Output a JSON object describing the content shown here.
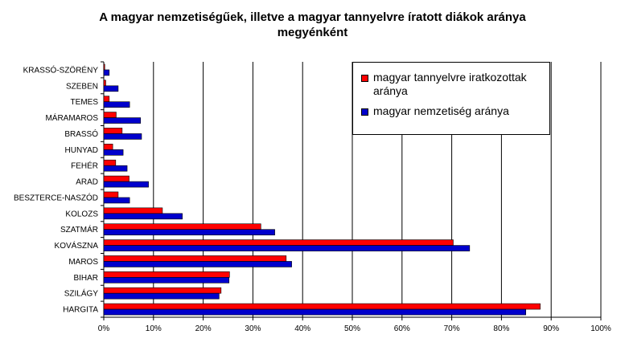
{
  "chart_data": {
    "type": "bar",
    "orientation": "horizontal",
    "title_line1": "A magyar nemzetiségűek, illetve  a magyar tannyelvre íratott  diákok aránya",
    "title_line2": "megyénként",
    "categories": [
      "KRASSÓ-SZÖRÉNY",
      "SZEBEN",
      "TEMES",
      "MÁRAMAROS",
      "BRASSÓ",
      "HUNYAD",
      "FEHÉR",
      "ARAD",
      "BESZTERCE-NASZÓD",
      "KOLOZS",
      "SZATMÁR",
      "KOVÁSZNA",
      "MAROS",
      "BIHAR",
      "SZILÁGY",
      "HARGITA"
    ],
    "series": [
      {
        "name": "magyar tannyelvre iratkozottak aránya",
        "color": "#ff0000",
        "values": [
          0.2,
          0.4,
          1.1,
          2.5,
          3.7,
          1.8,
          2.4,
          5.1,
          2.9,
          11.8,
          31.6,
          70.3,
          36.7,
          25.3,
          23.6,
          87.8
        ]
      },
      {
        "name": "magyar nemzetiség aránya",
        "color": "#0000cc",
        "values": [
          1.1,
          2.9,
          5.2,
          7.4,
          7.6,
          3.9,
          4.7,
          9.0,
          5.2,
          15.8,
          34.4,
          73.6,
          37.8,
          25.2,
          23.2,
          84.9
        ]
      }
    ],
    "xlim": [
      0,
      100
    ],
    "xticks": [
      "0%",
      "10%",
      "20%",
      "30%",
      "40%",
      "50%",
      "60%",
      "70%",
      "80%",
      "90%",
      "100%"
    ],
    "grid": "vertical",
    "legend_position": "top-right"
  }
}
